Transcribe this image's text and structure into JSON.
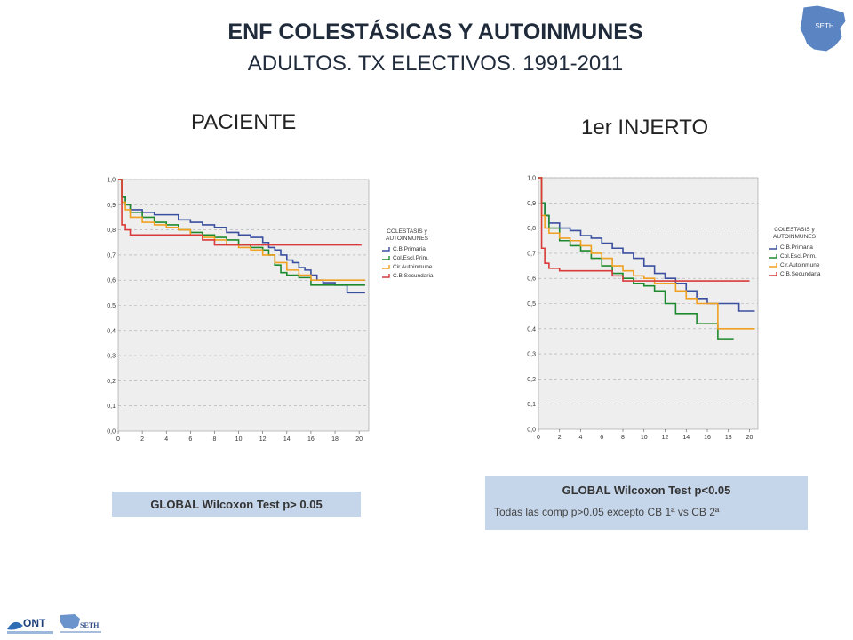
{
  "title": "ENF COLESTÁSICAS Y AUTOINMUNES",
  "subtitle": "ADULTOS. TX ELECTIVOS. 1991-2011",
  "logo": {
    "text": "SETH",
    "icon": "spain-map-icon"
  },
  "footer": {
    "ont": "ONT",
    "seth": "SETH"
  },
  "colors": {
    "C.B.Primaria": "#3b4fa0",
    "Col.Escl.Prim.": "#1e8a2e",
    "Cir.Autoinmune": "#f0a020",
    "C.B.Secundaria": "#d93a3a"
  },
  "chart_data": [
    {
      "type": "line",
      "title": "PACIENTE",
      "legend_title": [
        "COLESTASIS y",
        "AUTOINMUNES"
      ],
      "legend_position": "right",
      "grid": true,
      "xlim": [
        0,
        20
      ],
      "ylim": [
        0,
        1
      ],
      "xticks": [
        "0",
        "2",
        "4",
        "6",
        "8",
        "10",
        "12",
        "14",
        "16",
        "18",
        "20"
      ],
      "yticks": [
        "0,0",
        "0,1",
        "0,2",
        "0,3",
        "0,4",
        "0,5",
        "0,6",
        "0,7",
        "0,8",
        "0,9",
        "1,0"
      ],
      "series": [
        {
          "name": "C.B.Primaria",
          "x": [
            0,
            0.3,
            0.6,
            1,
            2,
            3,
            4,
            5,
            6,
            7,
            8,
            9,
            10,
            11,
            12,
            12.5,
            13,
            13.5,
            14,
            14.5,
            15,
            15.5,
            16,
            16.5,
            17,
            18,
            19,
            20.5
          ],
          "y": [
            1,
            0.93,
            0.9,
            0.88,
            0.87,
            0.86,
            0.86,
            0.84,
            0.83,
            0.82,
            0.81,
            0.79,
            0.78,
            0.77,
            0.75,
            0.73,
            0.72,
            0.7,
            0.68,
            0.67,
            0.65,
            0.64,
            0.62,
            0.6,
            0.59,
            0.58,
            0.55,
            0.55
          ]
        },
        {
          "name": "Col.Escl.Prim.",
          "x": [
            0,
            0.3,
            0.6,
            1,
            2,
            3,
            4,
            5,
            6,
            7,
            8,
            9,
            10,
            11,
            12,
            12.5,
            13,
            13.5,
            14,
            15,
            16,
            17,
            20.5
          ],
          "y": [
            1,
            0.93,
            0.9,
            0.87,
            0.85,
            0.83,
            0.82,
            0.8,
            0.79,
            0.78,
            0.77,
            0.76,
            0.74,
            0.73,
            0.72,
            0.7,
            0.66,
            0.63,
            0.62,
            0.61,
            0.58,
            0.58,
            0.58
          ]
        },
        {
          "name": "Cir.Autoinmune",
          "x": [
            0,
            0.3,
            0.6,
            1,
            2,
            3,
            4,
            5,
            6,
            7,
            8,
            9,
            10,
            11,
            12,
            13,
            14,
            15,
            16,
            17,
            18,
            20.5
          ],
          "y": [
            1,
            0.91,
            0.88,
            0.85,
            0.83,
            0.82,
            0.81,
            0.8,
            0.78,
            0.77,
            0.76,
            0.74,
            0.73,
            0.72,
            0.7,
            0.67,
            0.64,
            0.62,
            0.6,
            0.6,
            0.6,
            0.6
          ]
        },
        {
          "name": "C.B.Secundaria",
          "x": [
            0,
            0.3,
            0.6,
            1,
            2,
            3,
            4,
            5,
            6,
            7,
            8,
            9,
            10,
            20.2
          ],
          "y": [
            1,
            0.82,
            0.8,
            0.78,
            0.78,
            0.78,
            0.78,
            0.78,
            0.78,
            0.76,
            0.74,
            0.74,
            0.74,
            0.74
          ]
        }
      ]
    },
    {
      "type": "line",
      "title": "1er INJERTO",
      "legend_title": [
        "COLESTASIS y",
        "AUTOINMUNES"
      ],
      "legend_position": "right",
      "grid": true,
      "xlim": [
        0,
        20
      ],
      "ylim": [
        0,
        1
      ],
      "xticks": [
        "0",
        "2",
        "4",
        "6",
        "8",
        "10",
        "12",
        "14",
        "16",
        "18",
        "20"
      ],
      "yticks": [
        "0,0",
        "0,1",
        "0,2",
        "0,3",
        "0,4",
        "0,5",
        "0,6",
        "0,7",
        "0,8",
        "0,9",
        "1,0"
      ],
      "series": [
        {
          "name": "C.B.Primaria",
          "x": [
            0,
            0.3,
            0.6,
            1,
            2,
            3,
            4,
            5,
            6,
            7,
            8,
            9,
            10,
            11,
            12,
            13,
            14,
            15,
            16,
            17,
            18,
            19,
            20.5
          ],
          "y": [
            1,
            0.9,
            0.85,
            0.82,
            0.8,
            0.79,
            0.77,
            0.76,
            0.74,
            0.72,
            0.7,
            0.68,
            0.65,
            0.62,
            0.6,
            0.58,
            0.55,
            0.52,
            0.5,
            0.5,
            0.5,
            0.47,
            0.47
          ]
        },
        {
          "name": "Col.Escl.Prim.",
          "x": [
            0,
            0.3,
            0.6,
            1,
            2,
            3,
            4,
            5,
            6,
            7,
            8,
            9,
            10,
            11,
            12,
            13,
            14,
            15,
            16,
            17,
            18.5
          ],
          "y": [
            1,
            0.9,
            0.85,
            0.8,
            0.75,
            0.73,
            0.71,
            0.68,
            0.65,
            0.62,
            0.6,
            0.58,
            0.57,
            0.55,
            0.5,
            0.46,
            0.46,
            0.42,
            0.42,
            0.36,
            0.36
          ]
        },
        {
          "name": "Cir.Autoinmune",
          "x": [
            0,
            0.3,
            0.6,
            1,
            2,
            3,
            4,
            5,
            6,
            7,
            8,
            9,
            10,
            11,
            12,
            13,
            14,
            15,
            16,
            17,
            18,
            20.5
          ],
          "y": [
            1,
            0.85,
            0.8,
            0.78,
            0.76,
            0.75,
            0.73,
            0.7,
            0.68,
            0.65,
            0.63,
            0.61,
            0.6,
            0.58,
            0.58,
            0.55,
            0.52,
            0.5,
            0.5,
            0.4,
            0.4,
            0.4
          ]
        },
        {
          "name": "C.B.Secundaria",
          "x": [
            0,
            0.3,
            0.6,
            1,
            2,
            3,
            4,
            5,
            6,
            7,
            8,
            9,
            10,
            20
          ],
          "y": [
            1,
            0.72,
            0.66,
            0.64,
            0.63,
            0.63,
            0.63,
            0.63,
            0.63,
            0.61,
            0.59,
            0.59,
            0.59,
            0.59
          ]
        }
      ]
    }
  ],
  "box1": {
    "title": "GLOBAL Wilcoxon Test p> 0.05"
  },
  "box2": {
    "title": "GLOBAL Wilcoxon Test p<0.05",
    "note": "Todas las comp p>0.05 excepto CB 1ª vs CB 2ª"
  }
}
